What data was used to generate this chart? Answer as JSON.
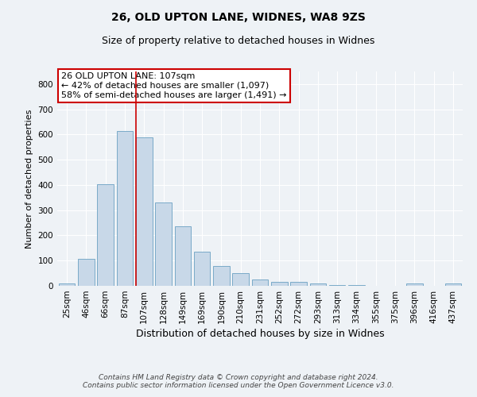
{
  "title1": "26, OLD UPTON LANE, WIDNES, WA8 9ZS",
  "title2": "Size of property relative to detached houses in Widnes",
  "xlabel": "Distribution of detached houses by size in Widnes",
  "ylabel": "Number of detached properties",
  "categories": [
    "25sqm",
    "46sqm",
    "66sqm",
    "87sqm",
    "107sqm",
    "128sqm",
    "149sqm",
    "169sqm",
    "190sqm",
    "210sqm",
    "231sqm",
    "252sqm",
    "272sqm",
    "293sqm",
    "313sqm",
    "334sqm",
    "355sqm",
    "375sqm",
    "396sqm",
    "416sqm",
    "437sqm"
  ],
  "values": [
    8,
    106,
    403,
    615,
    590,
    330,
    237,
    134,
    79,
    51,
    25,
    15,
    17,
    8,
    4,
    2,
    1,
    1,
    8,
    1,
    9
  ],
  "bar_color": "#c8d8e8",
  "bar_edgecolor": "#7aaac8",
  "vline_color": "#cc0000",
  "vline_x_index": 4,
  "annotation_line1": "26 OLD UPTON LANE: 107sqm",
  "annotation_line2": "← 42% of detached houses are smaller (1,097)",
  "annotation_line3": "58% of semi-detached houses are larger (1,491) →",
  "annotation_box_facecolor": "#ffffff",
  "annotation_box_edgecolor": "#cc0000",
  "footer": "Contains HM Land Registry data © Crown copyright and database right 2024.\nContains public sector information licensed under the Open Government Licence v3.0.",
  "ylim": [
    0,
    850
  ],
  "yticks": [
    0,
    100,
    200,
    300,
    400,
    500,
    600,
    700,
    800
  ],
  "background_color": "#eef2f6",
  "grid_color": "#ffffff",
  "title1_fontsize": 10,
  "title2_fontsize": 9,
  "xlabel_fontsize": 9,
  "ylabel_fontsize": 8,
  "tick_fontsize": 7.5,
  "annotation_fontsize": 8,
  "footer_fontsize": 6.5
}
